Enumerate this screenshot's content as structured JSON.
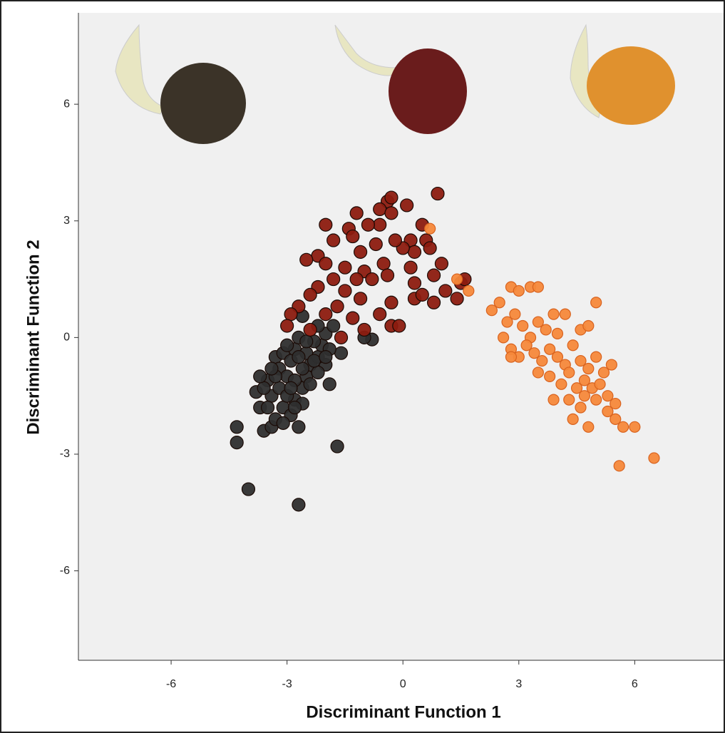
{
  "chart_data": {
    "type": "scatter",
    "xlabel": "Discriminant Function 1",
    "ylabel": "Discriminant Function 2",
    "xlim": [
      -8.4,
      8.3
    ],
    "ylim": [
      -8.3,
      8.35
    ],
    "xticks": [
      -6,
      -3,
      0,
      3,
      6
    ],
    "yticks": [
      -6,
      -3,
      0,
      3,
      6
    ],
    "series": [
      {
        "color": "#2e2e2e",
        "x": [
          -4.3,
          -4.3,
          -4.0,
          -2.7,
          -1.7,
          -1.9,
          -0.8,
          -1.0,
          -1.6,
          -2.0,
          -3.8,
          -3.7,
          -3.6,
          -3.4,
          -3.3,
          -3.1,
          -2.9,
          -2.8,
          -2.6,
          -2.5,
          -2.4,
          -2.2,
          -2.1,
          -2.0,
          -1.8,
          -3.3,
          -3.2,
          -3.1,
          -3.0,
          -2.9,
          -2.8,
          -2.7,
          -2.6,
          -2.5,
          -2.3,
          -2.2,
          -3.5,
          -3.4,
          -3.2,
          -3.0,
          -2.8,
          -2.6,
          -2.7,
          -2.9,
          -3.3,
          -2.4,
          -2.6,
          -3.6,
          -3.0,
          -2.5,
          -1.9,
          -2.2,
          -3.1,
          -2.8,
          -3.4,
          -2.3,
          -3.7,
          -2.0,
          -2.7,
          -3.5
        ],
        "y": [
          -2.3,
          -2.7,
          -3.9,
          -4.3,
          -2.8,
          -1.2,
          -0.05,
          0,
          -0.4,
          -0.7,
          -1.4,
          -1.8,
          -2.4,
          -2.3,
          -2.1,
          -1.8,
          -2.0,
          -1.6,
          -1.3,
          -1.0,
          -0.7,
          -0.5,
          -0.2,
          0.1,
          0.3,
          -0.5,
          -0.8,
          -0.4,
          -1.0,
          -0.6,
          -0.3,
          0.0,
          0.55,
          -0.4,
          -0.1,
          0.3,
          -1.1,
          -1.5,
          -1.3,
          -1.5,
          -1.1,
          -1.7,
          -2.3,
          -1.3,
          -1.0,
          -1.2,
          -0.8,
          -1.3,
          -0.2,
          -0.1,
          -0.3,
          -0.9,
          -2.2,
          -1.8,
          -0.8,
          -0.6,
          -1.0,
          -0.5,
          -0.5,
          -1.8
        ]
      },
      {
        "color": "#8c1b0f",
        "x": [
          0.9,
          -0.4,
          -0.3,
          0.1,
          -0.6,
          -1.2,
          -0.3,
          -2.0,
          -1.4,
          -1.3,
          -0.6,
          -0.9,
          0.5,
          0.2,
          0.6,
          0.7,
          0.3,
          0.0,
          -0.2,
          -0.7,
          -1.1,
          -1.8,
          -2.2,
          -2.5,
          -2.0,
          -1.5,
          -1.0,
          -0.5,
          0.2,
          0.3,
          0.8,
          1.0,
          1.5,
          1.6,
          1.1,
          1.4,
          0.8,
          0.3,
          -0.3,
          -0.6,
          -0.3,
          -0.1,
          -1.1,
          -1.5,
          -1.8,
          -2.2,
          -2.4,
          -2.7,
          -2.9,
          -3.0,
          -2.4,
          -2.0,
          -1.7,
          -1.3,
          -1.0,
          -0.8,
          -1.2,
          -0.4,
          0.5,
          -1.6
        ],
        "y": [
          3.7,
          3.5,
          3.6,
          3.4,
          3.3,
          3.2,
          3.2,
          2.9,
          2.8,
          2.6,
          2.9,
          2.9,
          2.9,
          2.5,
          2.5,
          2.3,
          2.2,
          2.3,
          2.5,
          2.4,
          2.2,
          2.5,
          2.1,
          2.0,
          1.9,
          1.8,
          1.7,
          1.9,
          1.8,
          1.4,
          1.6,
          1.9,
          1.4,
          1.5,
          1.2,
          1.0,
          0.9,
          1.0,
          0.9,
          0.6,
          0.3,
          0.3,
          1.0,
          1.2,
          1.5,
          1.3,
          1.1,
          0.8,
          0.6,
          0.3,
          0.2,
          0.6,
          0.8,
          0.5,
          0.2,
          1.5,
          1.5,
          1.6,
          1.1,
          0.0
        ]
      },
      {
        "color": "#f5883a",
        "x": [
          0.7,
          1.4,
          1.7,
          2.3,
          2.5,
          2.8,
          3.0,
          3.3,
          3.5,
          2.7,
          2.9,
          3.1,
          3.3,
          3.5,
          3.7,
          3.9,
          4.2,
          4.6,
          4.8,
          5.0,
          2.6,
          2.8,
          3.0,
          3.2,
          3.4,
          3.6,
          3.8,
          4.0,
          4.2,
          4.4,
          4.6,
          4.8,
          5.0,
          5.2,
          5.4,
          3.5,
          3.8,
          4.1,
          4.3,
          4.5,
          4.7,
          4.9,
          5.1,
          5.3,
          5.5,
          3.9,
          4.3,
          4.7,
          5.0,
          4.4,
          4.8,
          4.6,
          5.3,
          5.5,
          5.7,
          6.0,
          5.6,
          6.5,
          2.8,
          4.0
        ],
        "y": [
          2.8,
          1.5,
          1.2,
          0.7,
          0.9,
          1.3,
          1.2,
          1.3,
          1.3,
          0.4,
          0.6,
          0.3,
          0.0,
          0.4,
          0.2,
          0.6,
          0.6,
          0.2,
          0.3,
          0.9,
          0.0,
          -0.3,
          -0.5,
          -0.2,
          -0.4,
          -0.6,
          -0.3,
          -0.5,
          -0.7,
          -0.2,
          -0.6,
          -0.8,
          -0.5,
          -0.9,
          -0.7,
          -0.9,
          -1.0,
          -1.2,
          -0.9,
          -1.3,
          -1.1,
          -1.3,
          -1.2,
          -1.5,
          -1.7,
          -1.6,
          -1.6,
          -1.5,
          -1.6,
          -2.1,
          -2.3,
          -1.8,
          -1.9,
          -2.1,
          -2.3,
          -2.3,
          -3.3,
          -3.1,
          -0.5,
          0.1
        ]
      }
    ]
  }
}
